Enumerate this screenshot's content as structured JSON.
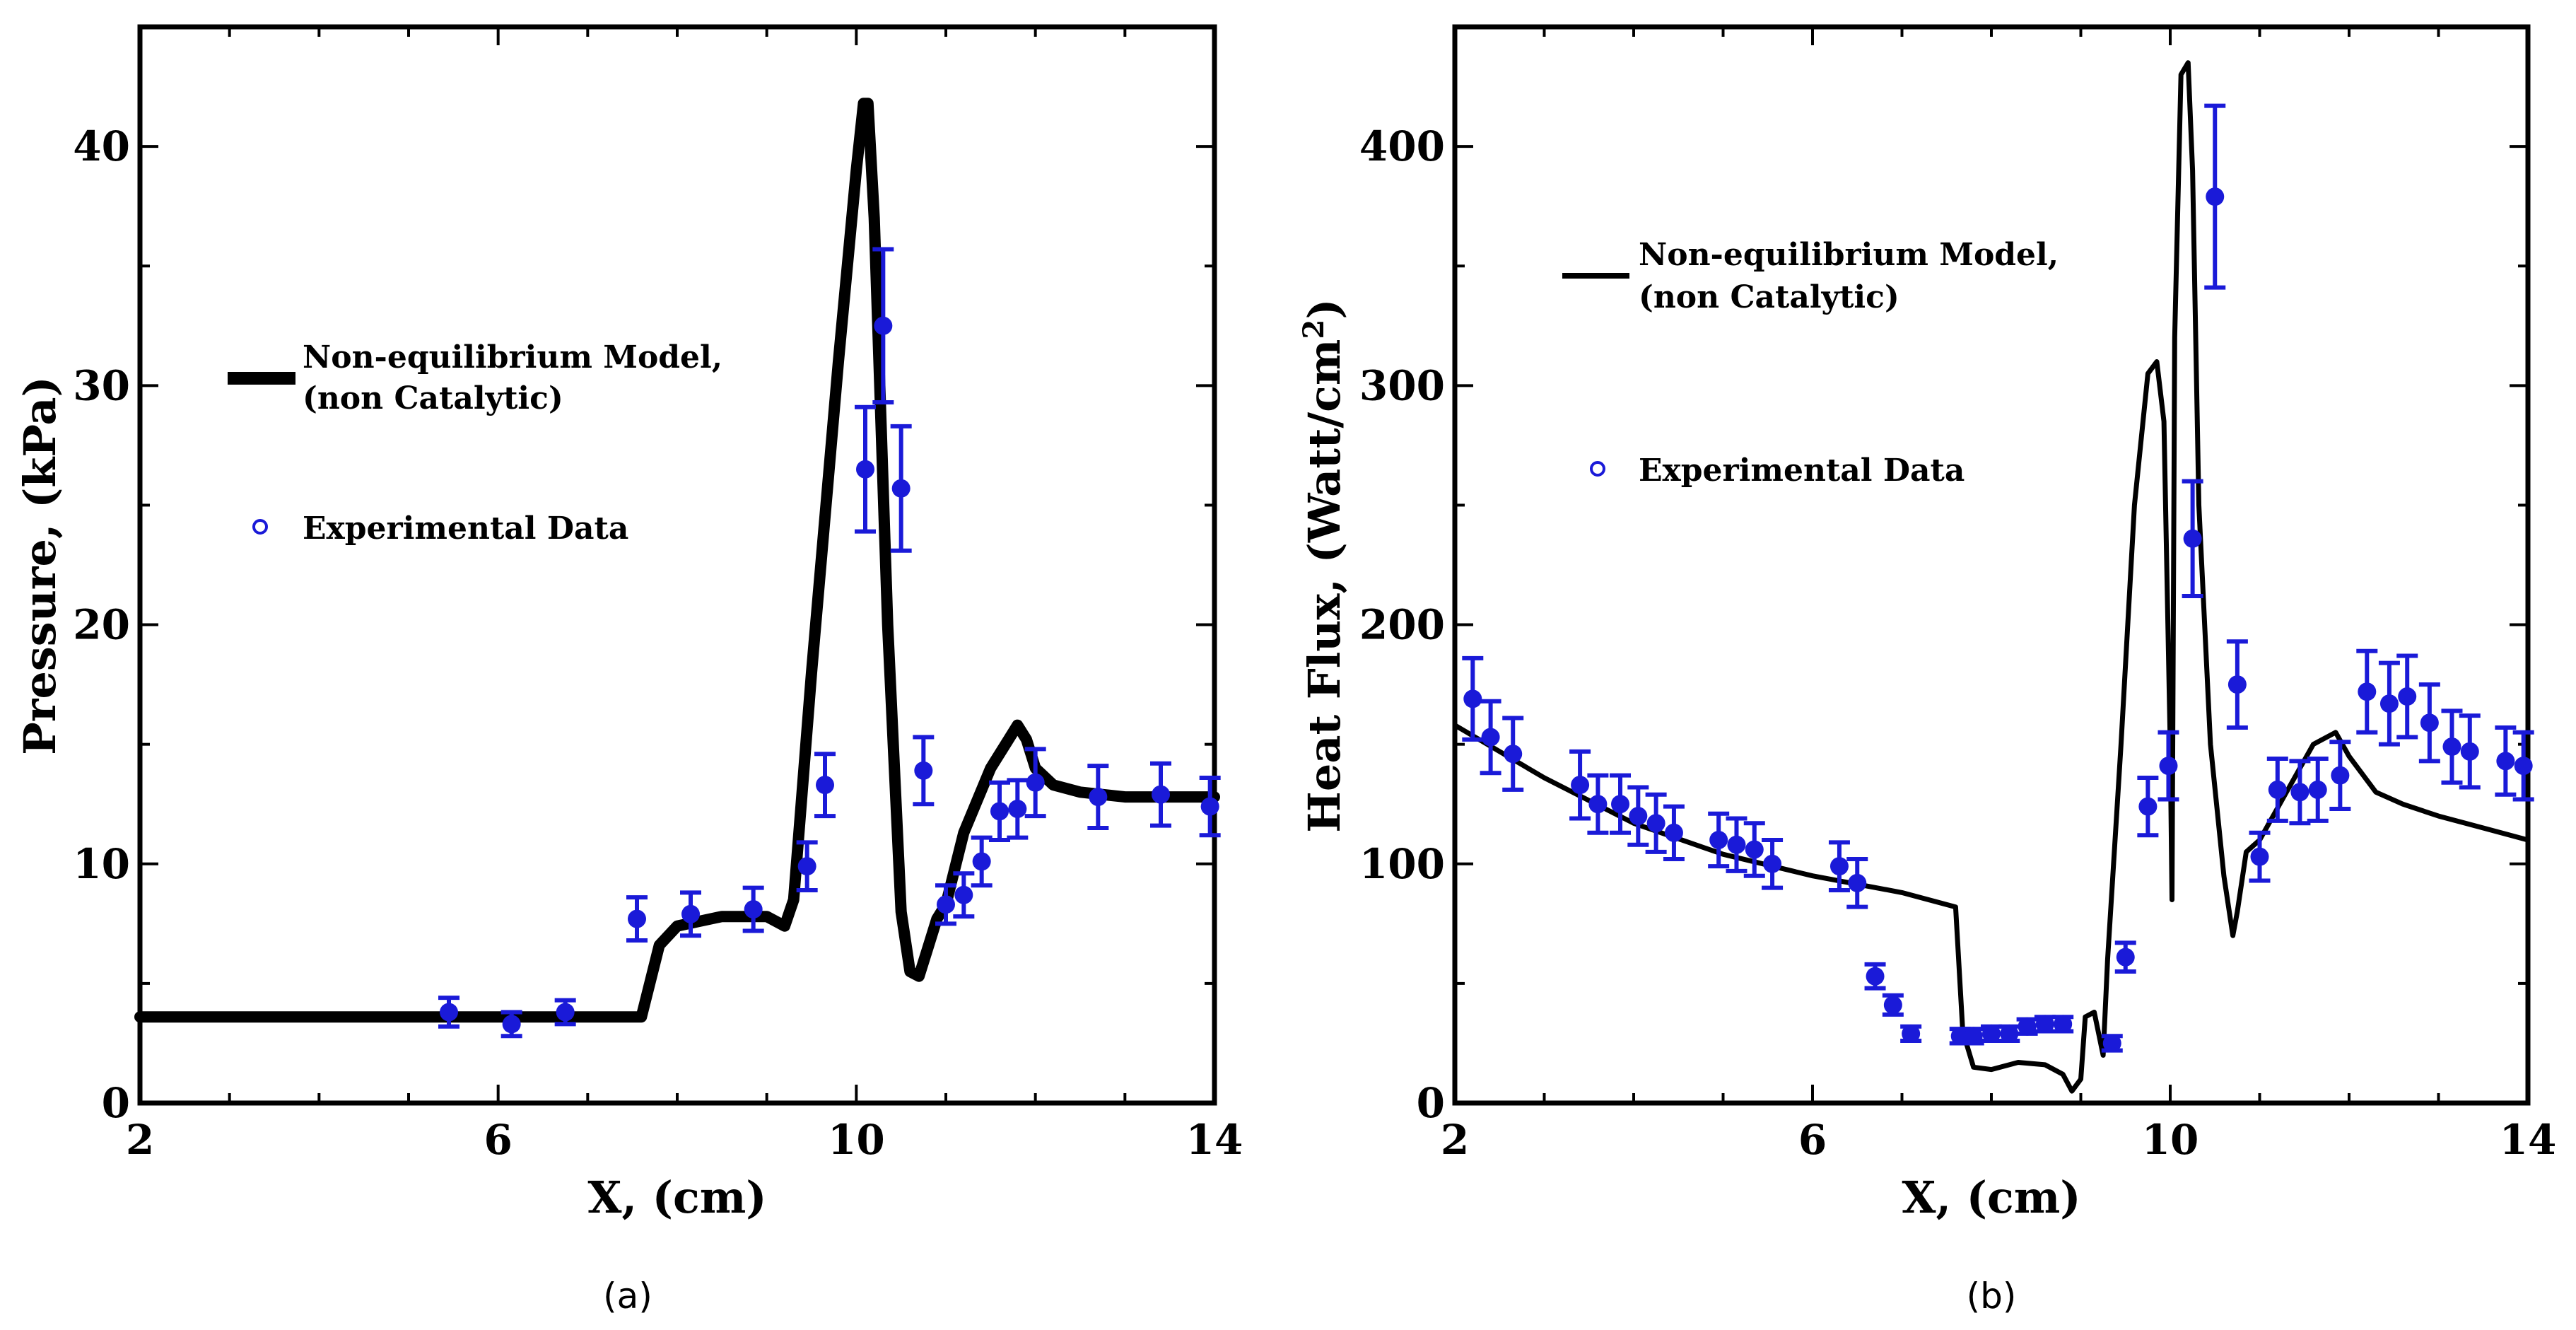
{
  "chart_data": [
    {
      "type": "line",
      "panel": "a",
      "caption": "(a)",
      "title": "",
      "xlabel": "X, (cm)",
      "ylabel": "Pressure, (kPa)",
      "xlim": [
        2,
        14
      ],
      "ylim": [
        0,
        45
      ],
      "xticks": [
        2,
        6,
        10,
        14
      ],
      "yticks": [
        0,
        10,
        20,
        30,
        40
      ],
      "grid": false,
      "legend": {
        "placement": "upper-left",
        "entries": [
          "Non-equilibrium Model,",
          "(non Catalytic)",
          "Experimental Data"
        ]
      },
      "series": [
        {
          "name": "Non-equilibrium Model, (non Catalytic)",
          "kind": "line",
          "color": "#000000",
          "x": [
            2.0,
            7.0,
            7.5,
            7.6,
            7.8,
            8.0,
            8.5,
            9.0,
            9.2,
            9.3,
            9.5,
            9.8,
            10.0,
            10.08,
            10.13,
            10.2,
            10.35,
            10.5,
            10.6,
            10.7,
            10.8,
            10.9,
            11.0,
            11.2,
            11.5,
            11.7,
            11.8,
            11.9,
            12.0,
            12.2,
            12.5,
            13.0,
            14.0
          ],
          "y": [
            3.6,
            3.6,
            3.6,
            3.6,
            6.6,
            7.4,
            7.8,
            7.8,
            7.4,
            8.5,
            18.0,
            31.0,
            39.0,
            41.8,
            41.8,
            37.0,
            20.0,
            8.0,
            5.5,
            5.3,
            6.5,
            7.7,
            8.3,
            11.3,
            14.0,
            15.2,
            15.8,
            15.2,
            14.0,
            13.3,
            13.0,
            12.8,
            12.8
          ]
        },
        {
          "name": "Experimental Data",
          "kind": "scatter-errorbar",
          "color": "#1a1ad8",
          "x": [
            5.45,
            6.15,
            6.75,
            7.55,
            8.15,
            8.85,
            9.45,
            9.65,
            10.1,
            10.3,
            10.5,
            10.75,
            11.0,
            11.2,
            11.4,
            11.6,
            11.8,
            12.0,
            12.7,
            13.4,
            13.95
          ],
          "y": [
            3.8,
            3.3,
            3.8,
            7.7,
            7.9,
            8.1,
            9.9,
            13.3,
            26.5,
            32.5,
            25.7,
            13.9,
            8.3,
            8.7,
            10.1,
            12.2,
            12.3,
            13.4,
            12.8,
            12.9,
            12.4
          ],
          "err": [
            0.6,
            0.5,
            0.5,
            0.9,
            0.9,
            0.9,
            1.0,
            1.3,
            2.6,
            3.2,
            2.6,
            1.4,
            0.8,
            0.9,
            1.0,
            1.2,
            1.2,
            1.4,
            1.3,
            1.3,
            1.2
          ]
        }
      ]
    },
    {
      "type": "line",
      "panel": "b",
      "caption": "(b)",
      "title": "",
      "xlabel": "X, (cm)",
      "ylabel": "Heat Flux, (Watt/cm",
      "ylabel_sup": "2",
      "ylabel_end": ")",
      "xlim": [
        2,
        14
      ],
      "ylim": [
        0,
        450
      ],
      "xticks": [
        2,
        6,
        10,
        14
      ],
      "yticks": [
        0,
        100,
        200,
        300,
        400
      ],
      "grid": false,
      "legend": {
        "placement": "upper-left",
        "entries": [
          "Non-equilibrium Model,",
          "(non Catalytic)",
          "Experimental Data"
        ]
      },
      "series": [
        {
          "name": "Non-equilibrium Model, (non Catalytic)",
          "kind": "line",
          "color": "#000000",
          "x": [
            2.0,
            3.0,
            4.0,
            5.0,
            6.0,
            7.0,
            7.6,
            7.68,
            7.8,
            8.0,
            8.3,
            8.6,
            8.8,
            8.9,
            9.0,
            9.05,
            9.15,
            9.25,
            9.3,
            9.45,
            9.6,
            9.75,
            9.85,
            9.93,
            10.0,
            10.02,
            10.05,
            10.12,
            10.2,
            10.25,
            10.32,
            10.45,
            10.6,
            10.7,
            10.75,
            10.85,
            11.0,
            11.3,
            11.6,
            11.85,
            12.0,
            12.3,
            12.6,
            13.0,
            13.5,
            14.0
          ],
          "y": [
            158,
            136,
            117,
            104,
            95,
            88,
            82,
            30,
            15,
            14,
            17,
            16,
            12,
            5,
            10,
            36,
            38,
            20,
            60,
            150,
            250,
            305,
            310,
            285,
            150,
            85,
            320,
            430,
            435,
            390,
            250,
            150,
            95,
            70,
            80,
            105,
            110,
            130,
            150,
            155,
            145,
            130,
            125,
            120,
            115,
            110
          ]
        },
        {
          "name": "Experimental Data",
          "kind": "scatter-errorbar",
          "color": "#1a1ad8",
          "x": [
            2.2,
            2.4,
            2.65,
            3.4,
            3.6,
            3.85,
            4.05,
            4.25,
            4.45,
            4.95,
            5.15,
            5.35,
            5.55,
            6.3,
            6.5,
            6.7,
            6.9,
            7.1,
            7.65,
            7.8,
            8.0,
            8.2,
            8.4,
            8.6,
            8.8,
            9.35,
            9.5,
            9.75,
            9.98,
            10.25,
            10.5,
            10.75,
            11.0,
            11.2,
            11.45,
            11.65,
            11.9,
            12.2,
            12.45,
            12.65,
            12.9,
            13.15,
            13.35,
            13.75,
            13.95
          ],
          "y": [
            169,
            153,
            146,
            133,
            125,
            125,
            120,
            117,
            113,
            110,
            108,
            106,
            100,
            99,
            92,
            53,
            41,
            29,
            28,
            28,
            29,
            29,
            32,
            33,
            33,
            25,
            61,
            124,
            141,
            236,
            379,
            175,
            103,
            131,
            130,
            131,
            137,
            172,
            167,
            170,
            159,
            149,
            147,
            143,
            141
          ],
          "err": [
            17,
            15,
            15,
            14,
            12,
            12,
            12,
            12,
            11,
            11,
            11,
            11,
            10,
            10,
            10,
            5,
            4,
            3,
            3,
            3,
            3,
            3,
            3,
            3,
            3,
            3,
            6,
            12,
            14,
            24,
            38,
            18,
            10,
            13,
            13,
            13,
            14,
            17,
            17,
            17,
            16,
            15,
            15,
            14,
            14
          ]
        }
      ]
    }
  ]
}
